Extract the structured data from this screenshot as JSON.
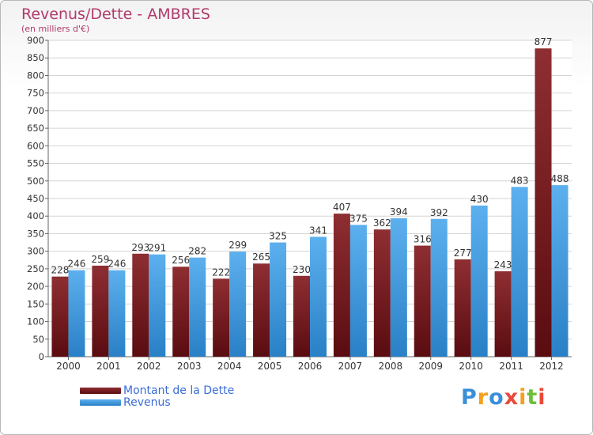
{
  "chart_data": {
    "type": "bar",
    "title": "Revenus/Dette - AMBRES",
    "subtitle": "(en milliers d'€)",
    "categories": [
      "2000",
      "2001",
      "2002",
      "2003",
      "2004",
      "2005",
      "2006",
      "2007",
      "2008",
      "2009",
      "2010",
      "2011",
      "2012"
    ],
    "series": [
      {
        "name": "Montant de la Dette",
        "color": "#7a1e22",
        "values": [
          228,
          259,
          293,
          256,
          222,
          265,
          230,
          407,
          362,
          316,
          277,
          243,
          877
        ]
      },
      {
        "name": "Revenus",
        "color": "#4aa2e6",
        "values": [
          246,
          246,
          291,
          282,
          299,
          325,
          341,
          375,
          394,
          392,
          430,
          483,
          488
        ]
      }
    ],
    "ylim": [
      0,
      900
    ],
    "yticks": [
      0,
      50,
      100,
      150,
      200,
      250,
      300,
      350,
      400,
      450,
      500,
      550,
      600,
      650,
      700,
      750,
      800,
      850,
      900
    ],
    "grid": true,
    "legend_position": "bottom-left"
  },
  "logo": {
    "letters": [
      "P",
      "r",
      "o",
      "x",
      "i",
      "t",
      "i"
    ],
    "colors": [
      "#3a8fd8",
      "#f2a01e",
      "#3a8fd8",
      "#e84a3a",
      "#f2a01e",
      "#6cbf3a",
      "#e84a3a"
    ],
    "icon": "proxiti-logo"
  }
}
